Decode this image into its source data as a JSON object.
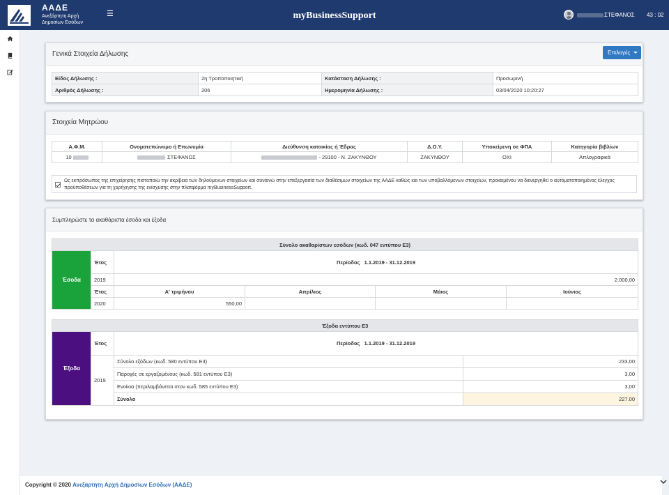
{
  "header": {
    "logo_title": "ΑΑΔΕ",
    "logo_sub1": "Ανεξάρτητη Αρχή",
    "logo_sub2": "Δημοσίων Εσόδων",
    "app_title": "myBusinessSupport",
    "user_name": "ΣΤΕΦΑΝΟΣ",
    "timer": "43 : 02",
    "menu_icon": "hamburger-icon"
  },
  "sidebar": {
    "icons": [
      "home-icon",
      "book-icon",
      "edit-icon"
    ]
  },
  "declaration": {
    "title": "Γενικά Στοιχεία Δήλωσης",
    "options_button": "Επιλογές",
    "type_label": "Είδος Δήλωσης :",
    "type_value": "2η Τροποποιητική",
    "status_label": "Κατάσταση Δήλωσης :",
    "status_value": "Προσωρινή",
    "number_label": "Αριθμός Δήλωσης :",
    "number_value": "206",
    "date_label": "Ημερομηνία Δήλωσης :",
    "date_value": "03/04/2020 10:20:27"
  },
  "registry": {
    "title": "Στοιχεία Μητρώου",
    "headers": [
      "Α.Φ.Μ.",
      "Ονοματεπώνυμο ή Επωνυμία",
      "Διεύθυνση κατοικίας ή Έδρας",
      "Δ.Ο.Υ.",
      "Υποκείμενη σε ΦΠΑ",
      "Κατηγορία βιβλίων"
    ],
    "afm": "10",
    "name": "ΣΤΕΦΑΝΟΣ",
    "address": "- 29100 - Ν. ΖΑΚΥΝΘΟΥ",
    "doy": "ΖΑΚΥΝΘΟΥ",
    "vat": "ΟΧΙ",
    "books": "Απλογραφικά",
    "consent_text": "Ως εκπρόσωπος της επιχείρησης πιστοποιώ την ακρίβεια των δηλούμενων στοιχείων και συναινώ στην επεξεργασία των διαθέσιμων στοιχείων της ΑΑΔΕ καθώς και των υποβαλλόμενων στοιχείων, προκειμένου να διενεργηθεί ο αυτοματοποιημένος έλεγχος προϋποθέσεων για τη χορήγησης της ενίσχυσης στην πλατφόρμα myBusinessSupport.",
    "consent_checked": true
  },
  "income_expenses": {
    "title": "Συμπληρώστε τα ακαθάριστα έσοδα και έξοδα",
    "income": {
      "header": "Σύνολο ακαθαρίστων εσόδων (κωδ. 047 εντύπου Ε3)",
      "label": "Έσοδα",
      "color": "#1aa33a",
      "year_label": "Έτος",
      "period_label": "Περίοδος",
      "period_value": "1.1.2019 - 31.12.2019",
      "year1": "2019",
      "year1_value": "2.000,00",
      "year_label2": "Έτος",
      "quarter_headers": [
        "Α' τριμήνου",
        "Απρίλιος",
        "Μάιος",
        "Ιούνιος"
      ],
      "year2": "2020",
      "quarter_values": [
        "550,00",
        "",
        "",
        ""
      ]
    },
    "expenses": {
      "header": "Έξοδα εντύπου Ε3",
      "label": "Έξοδα",
      "color": "#4b0f80",
      "year_label": "Έτος",
      "period_label": "Περίοδος",
      "period_value": "1.1.2019 - 31.12.2019",
      "year": "2019",
      "rows": [
        {
          "label": "Σύνολο εξόδων (κωδ. 580 εντύπου Ε3)",
          "value": "233,00"
        },
        {
          "label": "Παροχές σε εργαζομένους (κωδ. 581 εντύπου Ε3)",
          "value": "3,00"
        },
        {
          "label": "Ενοίκια (περιλαμβάνεται στον κωδ. 585 εντύπου Ε3)",
          "value": "3,00"
        }
      ],
      "total_label": "Σύνολο",
      "total_value": "227.00",
      "total_bg": "#fdf5df"
    }
  },
  "footer": {
    "copyright": "Copyright © 2020 ",
    "link": "Ανεξάρτητη Αρχή Δημοσίων Εσόδων (ΑΑΔΕ)"
  }
}
